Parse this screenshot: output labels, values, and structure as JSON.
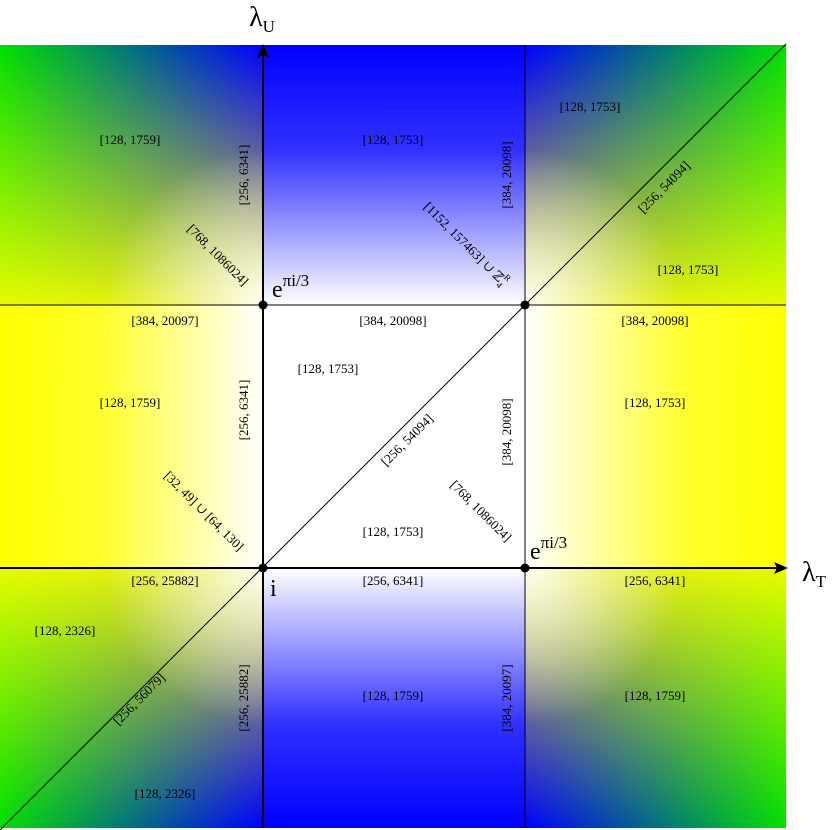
{
  "axes": {
    "horizontal": {
      "symbol": "λ",
      "subscript": "T"
    },
    "vertical": {
      "symbol": "λ",
      "subscript": "U"
    }
  },
  "points": [
    {
      "base": "e",
      "superscript": "πi/3"
    },
    {
      "base": "i"
    },
    {
      "base": "e",
      "superscript": "πi/3"
    }
  ],
  "regions": [
    {
      "text": "[128, 1759]"
    },
    {
      "text": "[256, 6341]"
    },
    {
      "text": "[128, 1753]"
    },
    {
      "text": "[384, 20098]"
    },
    {
      "text": "[128, 1753]"
    },
    {
      "text": "[256, 54094]"
    },
    {
      "text": "[768, 1086024]"
    },
    {
      "text": "[1152, 157463] ∪ ℤ",
      "superscript": "R",
      "subscript": "4"
    },
    {
      "text": "[128, 1753]"
    },
    {
      "text": "[384, 20097]"
    },
    {
      "text": "[384, 20098]"
    },
    {
      "text": "[384, 20098]"
    },
    {
      "text": "[128, 1753]"
    },
    {
      "text": "[128, 1759]"
    },
    {
      "text": "[256, 6341]"
    },
    {
      "text": "[256, 54094]"
    },
    {
      "text": "[384, 20098]"
    },
    {
      "text": "[128, 1753]"
    },
    {
      "text": "[32, 49] ∪ [64, 130]"
    },
    {
      "text": "[768, 1086024]"
    },
    {
      "text": "[128, 1753]"
    },
    {
      "text": "[256, 25882]"
    },
    {
      "text": "[256, 6341]"
    },
    {
      "text": "[256, 6341]"
    },
    {
      "text": "[128, 2326]"
    },
    {
      "text": "[256, 56079]"
    },
    {
      "text": "[256, 25882]"
    },
    {
      "text": "[128, 1759]"
    },
    {
      "text": "[384, 20097]"
    },
    {
      "text": "[128, 1759]"
    },
    {
      "text": "[128, 2326]"
    }
  ]
}
